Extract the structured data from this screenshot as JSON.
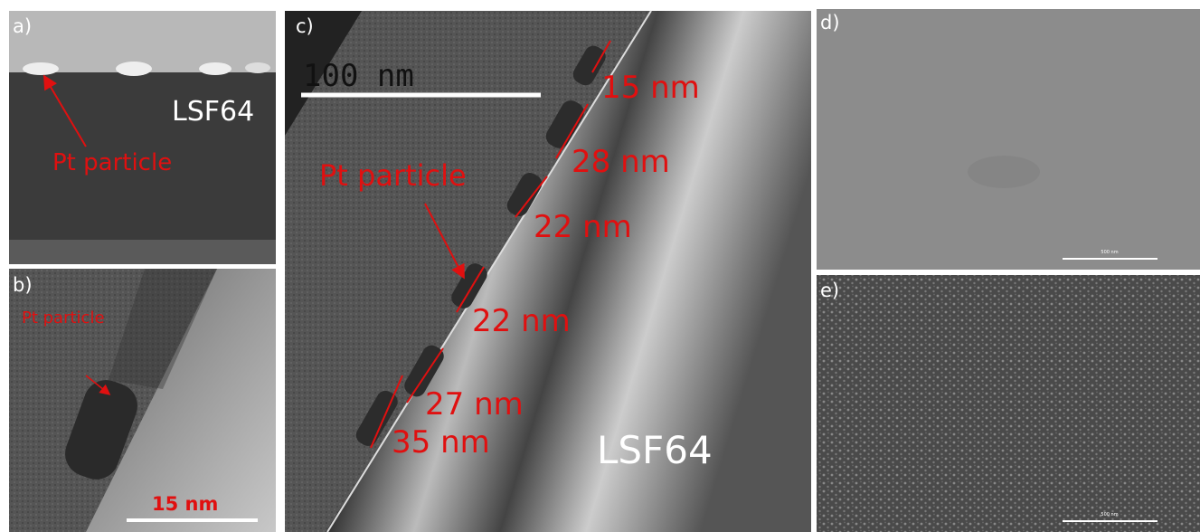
{
  "panels": {
    "a": {
      "label": "a)",
      "material": "LSF64",
      "annotation": "Pt particle"
    },
    "b": {
      "label": "b)",
      "annotation": "Pt particle",
      "scale": "15 nm"
    },
    "c": {
      "label": "c)",
      "scale": "100 nm",
      "annotation": "Pt particle",
      "sizes": [
        "15 nm",
        "28 nm",
        "22 nm",
        "22 nm",
        "27 nm",
        "35 nm"
      ],
      "material": "LSF64"
    },
    "d": {
      "label": "d)",
      "scale": "500 nm"
    },
    "e": {
      "label": "e)",
      "scale": "500 nm"
    }
  }
}
